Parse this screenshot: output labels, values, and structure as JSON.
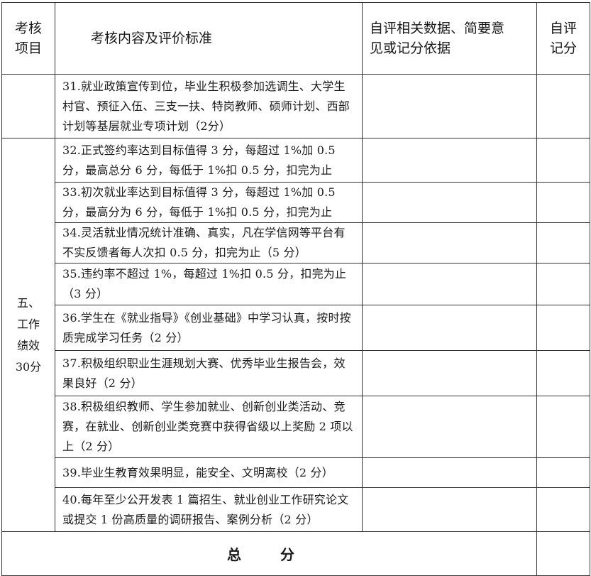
{
  "header": {
    "col1": "考核项目",
    "col1_lines": [
      "考核",
      "项目"
    ],
    "col2": "考核内容及评价标准",
    "col3": "自评相关数据、简要意见或记分依据",
    "col3_lines": [
      "自评相关数据、简要意",
      "见或记分依据"
    ],
    "col4_lines": [
      "自评",
      "记分"
    ]
  },
  "category": {
    "lines": [
      "五、",
      "工作",
      "绩效",
      "30分"
    ]
  },
  "rows": [
    {
      "criteria": "31.就业政策宣传到位，毕业生积极参加选调生、大学生村官、预征入伍、三支一扶、特岗教师、硕师计划、西部计划等基层就业专项计划（2分）",
      "evidence": "",
      "score": ""
    },
    {
      "criteria": "32.正式签约率达到目标值得 3 分，每超过 1%加 0.5 分，最高总分 6 分，每低于 1%扣 0.5 分，扣完为止",
      "evidence": "",
      "score": ""
    },
    {
      "criteria": "33.初次就业率达到目标值得 3 分，每超过 1%加 0.5 分，最高分为 6 分，每低于 1%扣 0.5 分，扣完为止",
      "evidence": "",
      "score": ""
    },
    {
      "criteria": "34.灵活就业情况统计准确、真实，凡在学信网等平台有不实反馈者每人次扣 0.5 分，扣完为止（5 分）",
      "evidence": "",
      "score": ""
    },
    {
      "criteria": "35.违约率不超过 1%，每超过 1%扣 0.5 分，扣完为止（3 分）",
      "evidence": "",
      "score": ""
    },
    {
      "criteria": "36.学生在《就业指导》《创业基础》中学习认真，按时按质完成学习任务（2 分）",
      "evidence": "",
      "score": ""
    },
    {
      "criteria": "37.积极组织职业生涯规划大赛、优秀毕业生报告会，效果良好（2 分）",
      "evidence": "",
      "score": ""
    },
    {
      "criteria": "38.积极组织教师、学生参加就业、创新创业类活动、竞赛，在就业、创新创业类竞赛中获得省级以上奖励 2 项以上（2 分）",
      "evidence": "",
      "score": ""
    },
    {
      "criteria": "39.毕业生教育效果明显，能安全、文明离校（2 分）",
      "evidence": "",
      "score": ""
    },
    {
      "criteria": "40.每年至少公开发表 1 篇招生、就业创业工作研究论文或提交 1 份高质量的调研报告、案例分析（2 分）",
      "evidence": "",
      "score": ""
    }
  ],
  "total": {
    "label": "总分",
    "label_display": "总 分",
    "score": ""
  }
}
